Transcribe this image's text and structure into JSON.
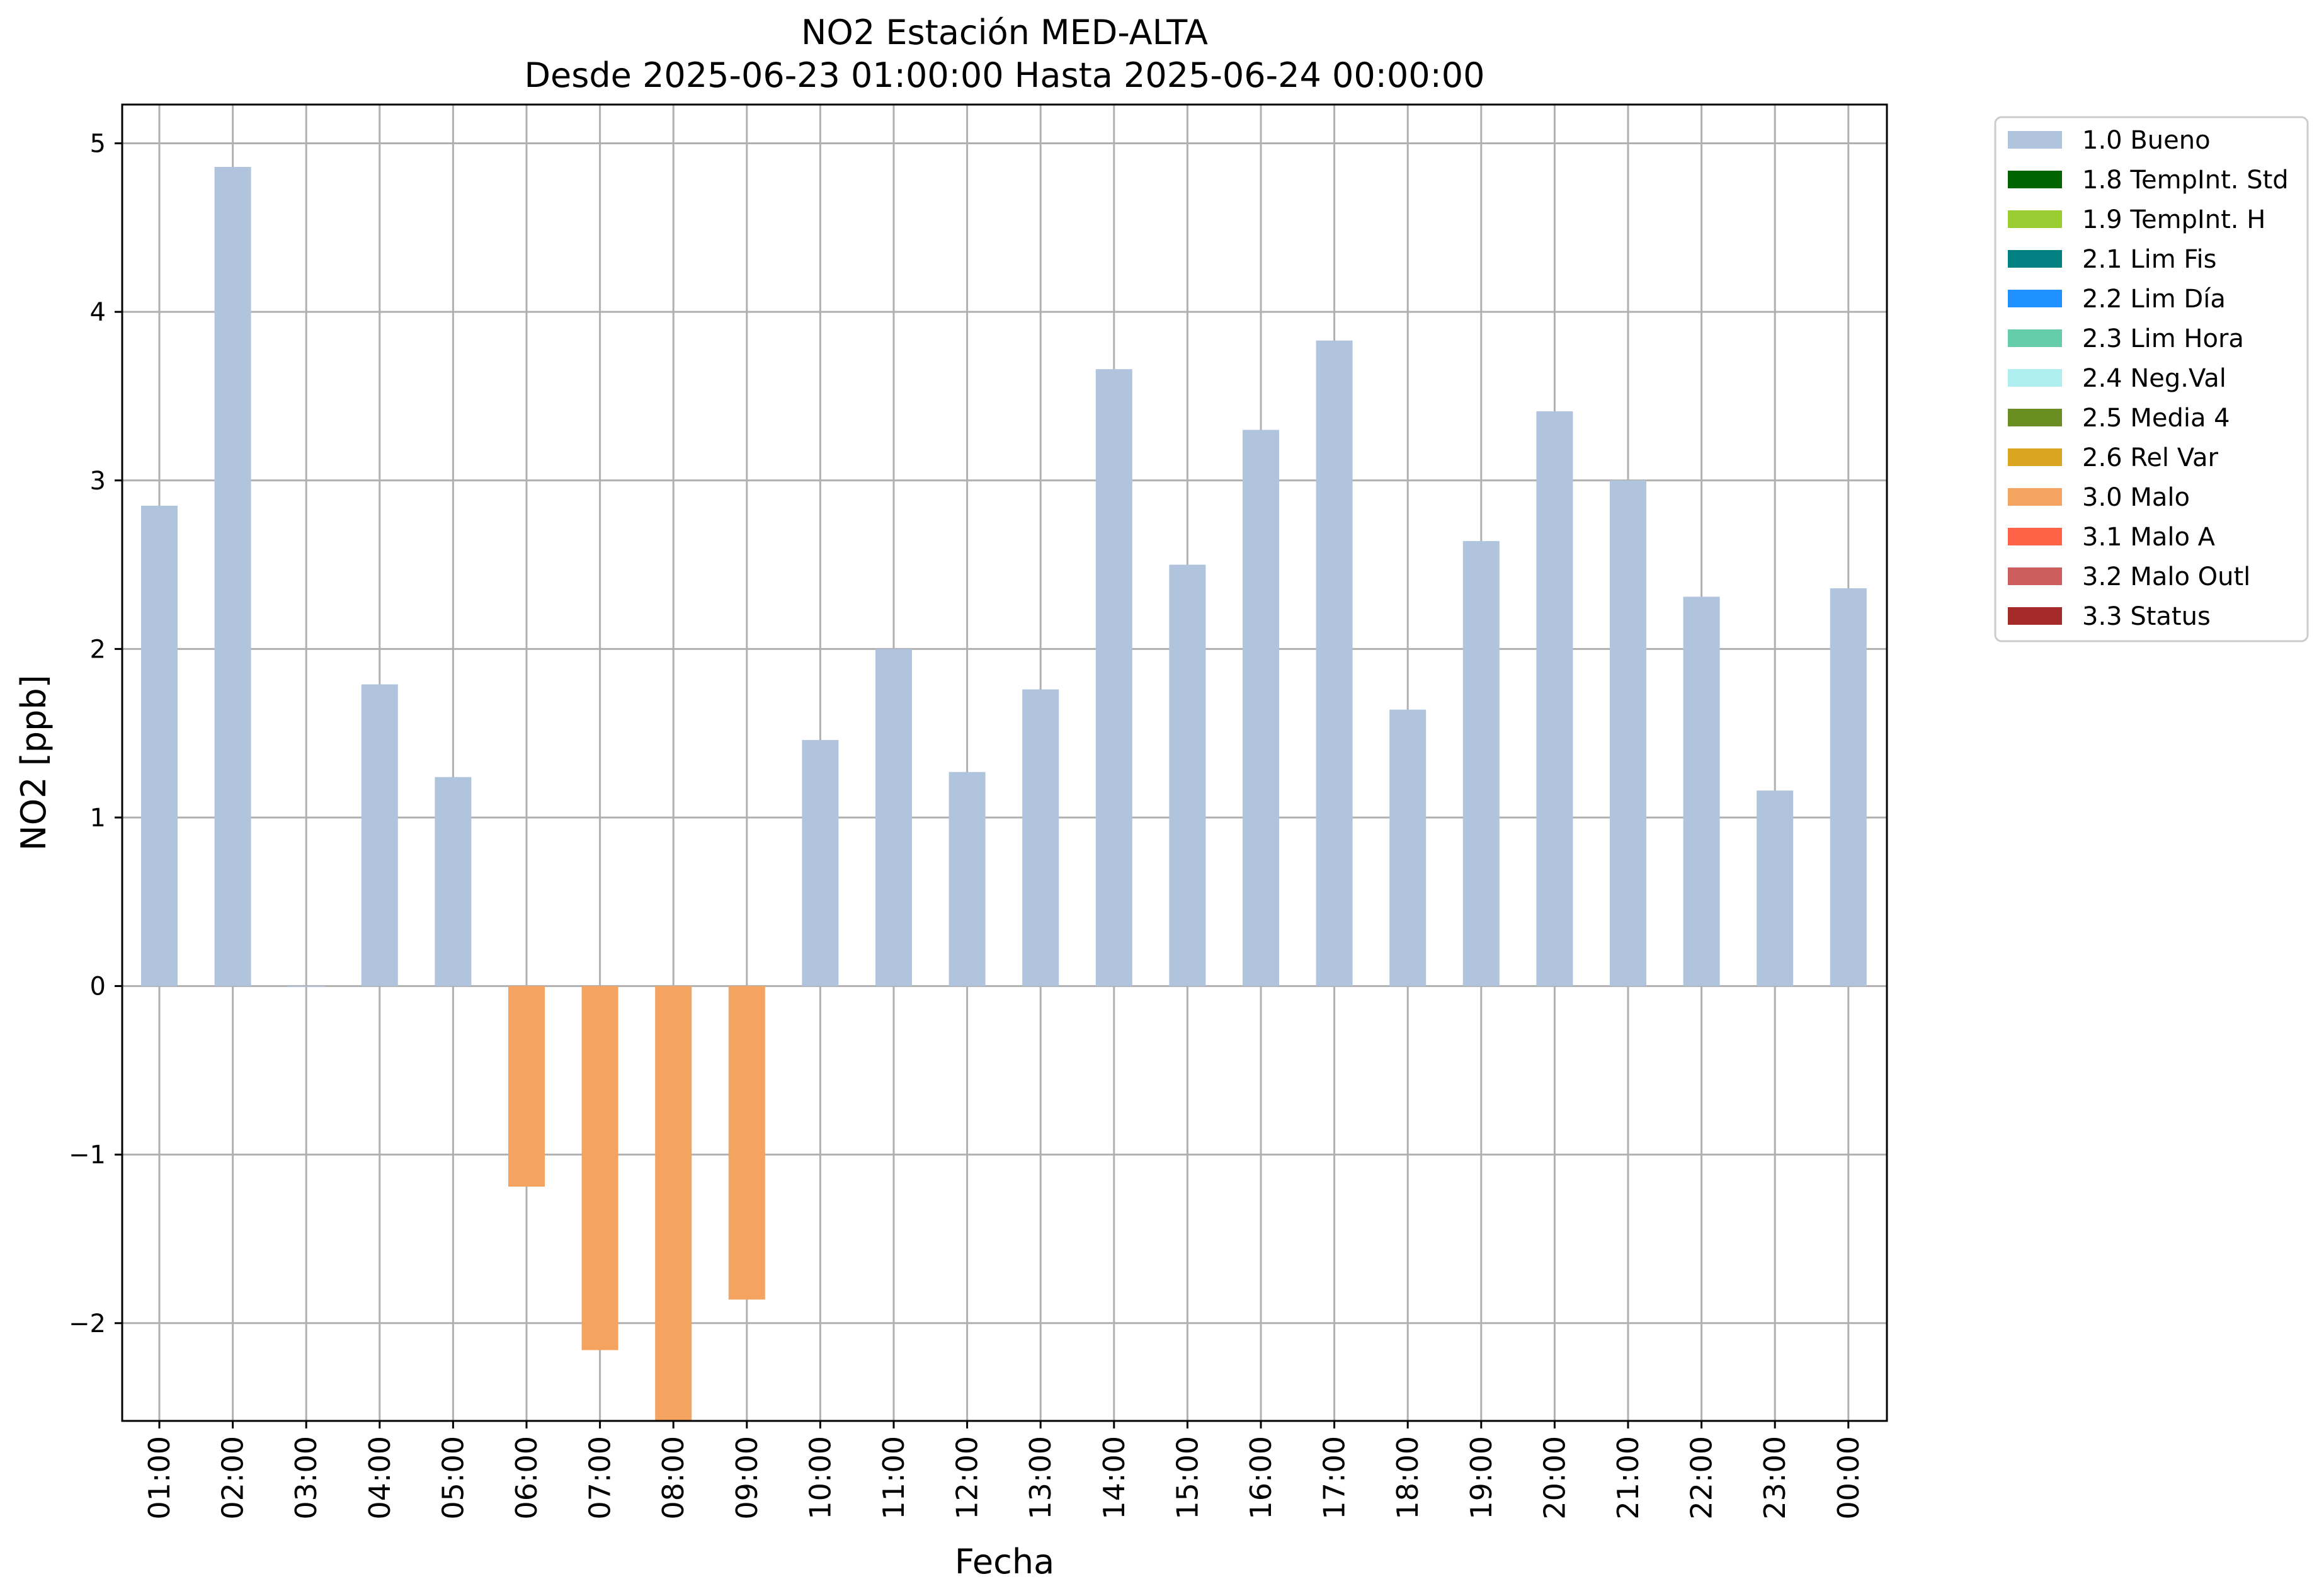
{
  "chart_data": {
    "type": "bar",
    "title": "NO2 Estación MED-ALTA",
    "subtitle": "Desde 2025-06-23 01:00:00 Hasta 2025-06-24 00:00:00",
    "xlabel": "Fecha",
    "ylabel": "NO2 [ppb]",
    "ylim": [
      -2.58,
      5.23
    ],
    "yticks": [
      "−2",
      "−1",
      "0",
      "1",
      "2",
      "3",
      "4",
      "5"
    ],
    "ytick_values": [
      -2,
      -1,
      0,
      1,
      2,
      3,
      4,
      5
    ],
    "grid": true,
    "legend_position": "outside-top-right",
    "categories": [
      "01:00",
      "02:00",
      "03:00",
      "04:00",
      "05:00",
      "06:00",
      "07:00",
      "08:00",
      "09:00",
      "10:00",
      "11:00",
      "12:00",
      "13:00",
      "14:00",
      "15:00",
      "16:00",
      "17:00",
      "18:00",
      "19:00",
      "20:00",
      "21:00",
      "22:00",
      "23:00",
      "00:00"
    ],
    "values": [
      2.85,
      4.86,
      0.0,
      1.79,
      1.24,
      -1.19,
      -2.16,
      -2.58,
      -1.86,
      1.46,
      2.0,
      1.27,
      1.76,
      3.66,
      2.5,
      3.3,
      3.83,
      1.64,
      2.64,
      3.41,
      3.0,
      2.31,
      1.16,
      2.36
    ],
    "flags": [
      "1.0 Bueno",
      "1.0 Bueno",
      "1.0 Bueno",
      "1.0 Bueno",
      "1.0 Bueno",
      "3.0 Malo",
      "3.0 Malo",
      "3.0 Malo",
      "3.0 Malo",
      "1.0 Bueno",
      "1.0 Bueno",
      "1.0 Bueno",
      "1.0 Bueno",
      "1.0 Bueno",
      "1.0 Bueno",
      "1.0 Bueno",
      "1.0 Bueno",
      "1.0 Bueno",
      "1.0 Bueno",
      "1.0 Bueno",
      "1.0 Bueno",
      "1.0 Bueno",
      "1.0 Bueno",
      "1.0 Bueno"
    ],
    "legend": [
      {
        "label": "1.0 Bueno",
        "color": "#b0c4de"
      },
      {
        "label": "1.8 TempInt. Std",
        "color": "#006400"
      },
      {
        "label": "1.9 TempInt. H",
        "color": "#9acd32"
      },
      {
        "label": "2.1 Lim Fis",
        "color": "#008080"
      },
      {
        "label": "2.2 Lim Día",
        "color": "#1e90ff"
      },
      {
        "label": "2.3 Lim Hora",
        "color": "#66cdaa"
      },
      {
        "label": "2.4 Neg.Val",
        "color": "#afeeee"
      },
      {
        "label": "2.5 Media 4",
        "color": "#6b8e23"
      },
      {
        "label": "2.6 Rel Var",
        "color": "#daa520"
      },
      {
        "label": "3.0 Malo",
        "color": "#f4a460"
      },
      {
        "label": "3.1 Malo A",
        "color": "#ff6347"
      },
      {
        "label": "3.2 Malo Outl",
        "color": "#cd5c5c"
      },
      {
        "label": "3.3 Status",
        "color": "#a52a2a"
      }
    ]
  }
}
